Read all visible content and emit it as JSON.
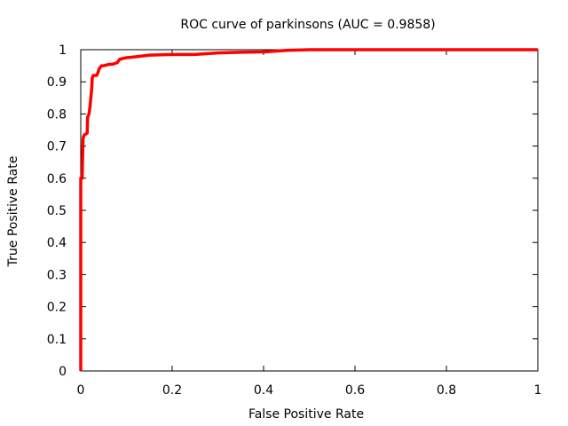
{
  "chart_data": {
    "type": "line",
    "title": "ROC curve of parkinsons (AUC = 0.9858)",
    "xlabel": "False Positive Rate",
    "ylabel": "True Positive Rate",
    "xlim": [
      0,
      1
    ],
    "ylim": [
      0,
      1
    ],
    "x_ticks": [
      "0",
      "0.2",
      "0.4",
      "0.6",
      "0.8",
      "1"
    ],
    "y_ticks": [
      "0",
      "0.1",
      "0.2",
      "0.3",
      "0.4",
      "0.5",
      "0.6",
      "0.7",
      "0.8",
      "0.9",
      "1"
    ],
    "x_tick_values": [
      0,
      0.2,
      0.4,
      0.6,
      0.8,
      1
    ],
    "y_tick_values": [
      0,
      0.1,
      0.2,
      0.3,
      0.4,
      0.5,
      0.6,
      0.7,
      0.8,
      0.9,
      1
    ],
    "grid": false,
    "legend": "none",
    "series": [
      {
        "color": "#ff0000",
        "x": [
          0,
          0,
          0.003,
          0.005,
          0.006,
          0.008,
          0.014,
          0.015,
          0.018,
          0.02,
          0.022,
          0.024,
          0.025,
          0.027,
          0.028,
          0.03,
          0.035,
          0.038,
          0.04,
          0.045,
          0.05,
          0.055,
          0.06,
          0.07,
          0.08,
          0.085,
          0.09,
          0.1,
          0.12,
          0.15,
          0.2,
          0.25,
          0.3,
          0.35,
          0.4,
          0.45,
          0.5,
          0.6,
          0.8,
          1
        ],
        "y": [
          0,
          0.6,
          0.6,
          0.72,
          0.73,
          0.735,
          0.74,
          0.79,
          0.8,
          0.82,
          0.85,
          0.88,
          0.91,
          0.92,
          0.92,
          0.92,
          0.92,
          0.93,
          0.94,
          0.95,
          0.95,
          0.952,
          0.954,
          0.955,
          0.96,
          0.97,
          0.972,
          0.975,
          0.978,
          0.983,
          0.985,
          0.985,
          0.99,
          0.992,
          0.993,
          0.998,
          1,
          1,
          1,
          1
        ]
      }
    ]
  }
}
